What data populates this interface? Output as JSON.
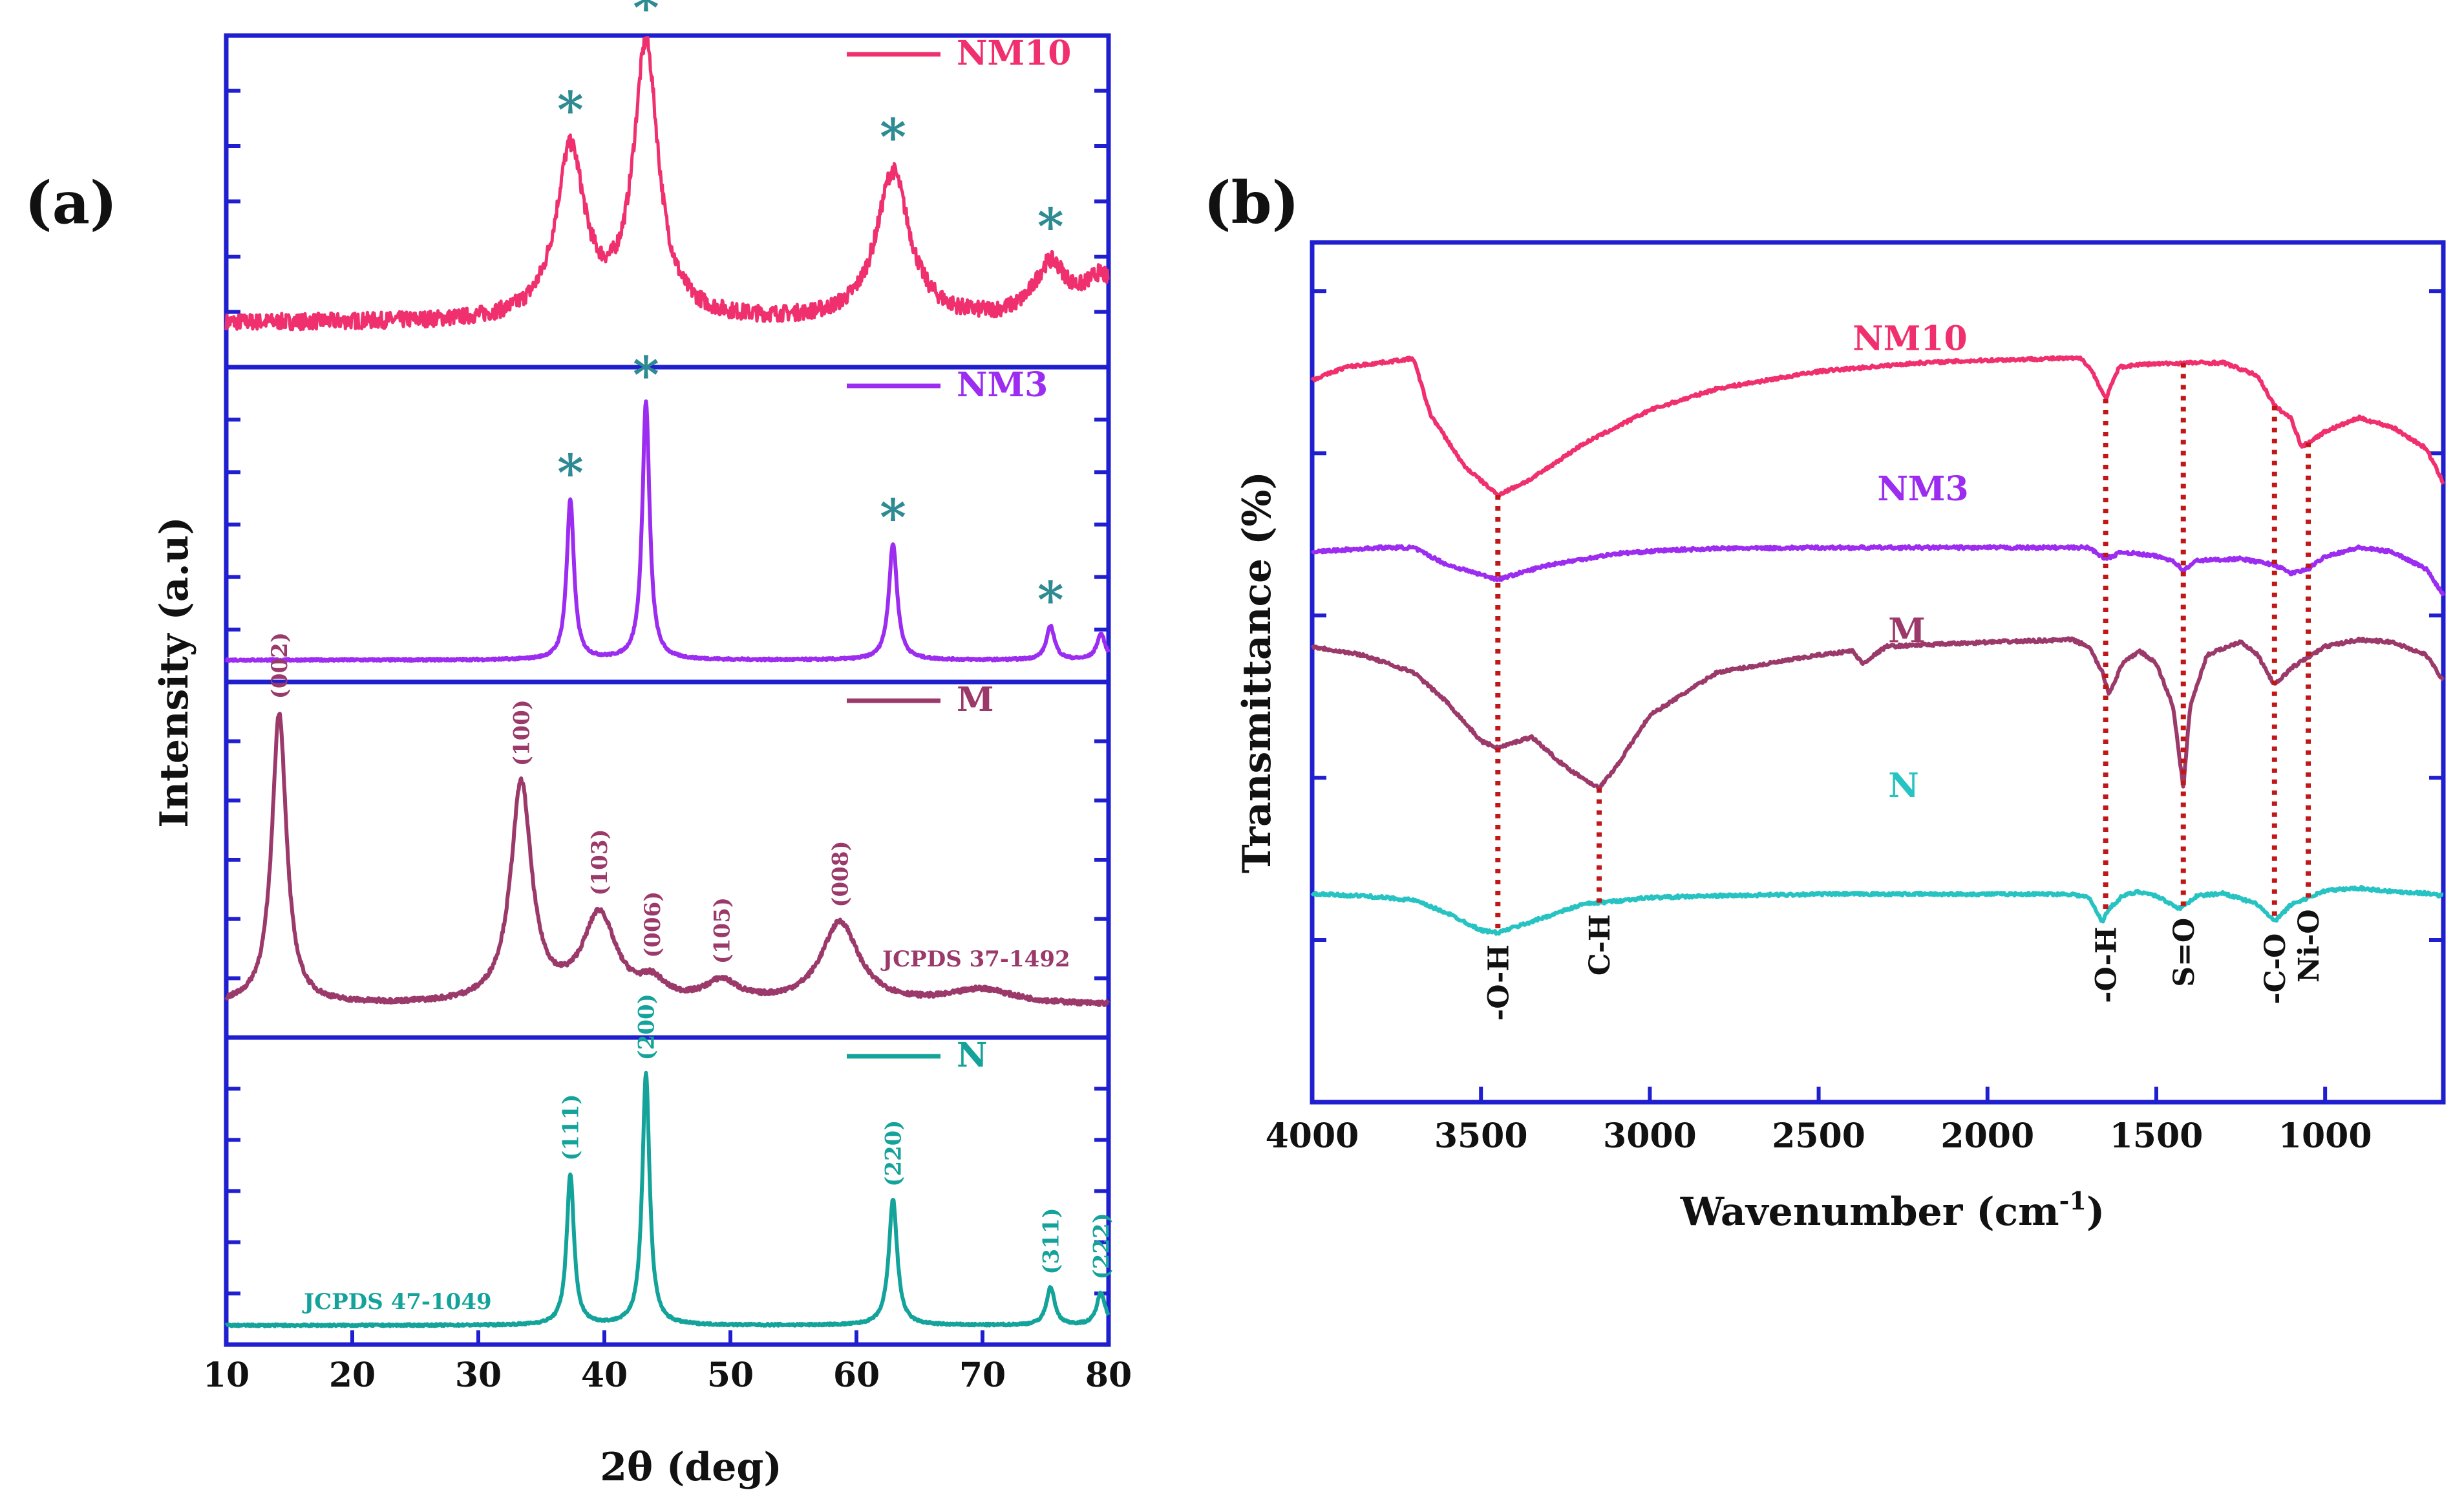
{
  "chart_data": [
    {
      "panel": "(a)",
      "type": "line",
      "xlabel": "2θ (deg)",
      "ylabel": "Intensity (a.u)",
      "xlim": [
        10,
        80
      ],
      "xticks": [
        "10",
        "20",
        "30",
        "40",
        "50",
        "60",
        "70",
        "80"
      ],
      "series": [
        {
          "name": "NM10",
          "color": "#f0306e",
          "baseline": 0.12,
          "noise": 0.06,
          "peaks": [
            {
              "x": 37.3,
              "height": 0.62,
              "width": 1.4,
              "marker": "*"
            },
            {
              "x": 43.3,
              "height": 1.0,
              "width": 1.2,
              "marker": "*"
            },
            {
              "x": 62.9,
              "height": 0.55,
              "width": 1.6,
              "marker": "*"
            },
            {
              "x": 75.4,
              "height": 0.2,
              "width": 1.6,
              "marker": "*"
            },
            {
              "x": 79.4,
              "height": 0.15,
              "width": 1.6,
              "marker": ""
            }
          ]
        },
        {
          "name": "NM3",
          "color": "#9b2cf0",
          "baseline": 0.04,
          "noise": 0.008,
          "peaks": [
            {
              "x": 37.3,
              "height": 0.62,
              "width": 0.35,
              "marker": "*"
            },
            {
              "x": 43.3,
              "height": 1.0,
              "width": 0.35,
              "marker": "*"
            },
            {
              "x": 62.9,
              "height": 0.45,
              "width": 0.4,
              "marker": "*"
            },
            {
              "x": 75.4,
              "height": 0.13,
              "width": 0.4,
              "marker": "*"
            },
            {
              "x": 79.4,
              "height": 0.1,
              "width": 0.4,
              "marker": ""
            }
          ]
        },
        {
          "name": "M",
          "color": "#9b3a6a",
          "baseline": 0.07,
          "noise": 0.015,
          "annotation": "JCPDS 37-1492",
          "peaks": [
            {
              "x": 14.2,
              "height": 1.0,
              "width": 0.7,
              "label": "(002)"
            },
            {
              "x": 33.4,
              "height": 0.75,
              "width": 1.0,
              "label": "(100)"
            },
            {
              "x": 39.6,
              "height": 0.3,
              "width": 1.6,
              "label": "(103)"
            },
            {
              "x": 43.8,
              "height": 0.06,
              "width": 1.2,
              "label": "(006)"
            },
            {
              "x": 49.3,
              "height": 0.07,
              "width": 1.6,
              "label": "(105)"
            },
            {
              "x": 58.7,
              "height": 0.28,
              "width": 1.8,
              "label": "(008)"
            },
            {
              "x": 70.0,
              "height": 0.05,
              "width": 3.0,
              "label": ""
            }
          ]
        },
        {
          "name": "N",
          "color": "#14a39a",
          "baseline": 0.03,
          "noise": 0.008,
          "annotation": "JCPDS 47-1049",
          "peaks": [
            {
              "x": 37.3,
              "height": 0.6,
              "width": 0.35,
              "label": "(111)"
            },
            {
              "x": 43.3,
              "height": 1.0,
              "width": 0.35,
              "label": "(200)"
            },
            {
              "x": 62.9,
              "height": 0.5,
              "width": 0.4,
              "label": "(220)"
            },
            {
              "x": 75.4,
              "height": 0.15,
              "width": 0.4,
              "label": "(311)"
            },
            {
              "x": 79.4,
              "height": 0.13,
              "width": 0.4,
              "label": "(222)"
            }
          ]
        }
      ]
    },
    {
      "panel": "(b)",
      "type": "line",
      "xlabel": "Wavenumber (cm",
      "xlabel_sup": "-1",
      "xlabel_end": ")",
      "ylabel": "Transmittance (%)",
      "xlim": [
        4000,
        650
      ],
      "xticks": [
        "4000",
        "3500",
        "3000",
        "2500",
        "2000",
        "1500",
        "1000"
      ],
      "ylim": [
        0,
        100
      ],
      "series": [
        {
          "name": "NM10",
          "color": "#f0306e",
          "points": [
            [
              4000,
              84
            ],
            [
              3900,
              85.5
            ],
            [
              3800,
              86
            ],
            [
              3700,
              86.5
            ],
            [
              3650,
              80
            ],
            [
              3550,
              74
            ],
            [
              3450,
              70.6
            ],
            [
              3350,
              72.5
            ],
            [
              3200,
              76.5
            ],
            [
              3000,
              80.5
            ],
            [
              2800,
              83
            ],
            [
              2500,
              85
            ],
            [
              2200,
              86
            ],
            [
              2000,
              86.3
            ],
            [
              1800,
              86.5
            ],
            [
              1720,
              86.5
            ],
            [
              1690,
              85
            ],
            [
              1650,
              81.8
            ],
            [
              1610,
              85.5
            ],
            [
              1550,
              85.8
            ],
            [
              1400,
              86
            ],
            [
              1300,
              86
            ],
            [
              1200,
              84.5
            ],
            [
              1150,
              81
            ],
            [
              1100,
              79.5
            ],
            [
              1070,
              76.2
            ],
            [
              1000,
              78
            ],
            [
              900,
              79.6
            ],
            [
              800,
              78.5
            ],
            [
              700,
              76
            ],
            [
              650,
              72
            ]
          ]
        },
        {
          "name": "NM3",
          "color": "#9b2cf0",
          "points": [
            [
              4000,
              64
            ],
            [
              3800,
              64.5
            ],
            [
              3700,
              64.5
            ],
            [
              3600,
              62.5
            ],
            [
              3450,
              60.8
            ],
            [
              3300,
              62.5
            ],
            [
              3100,
              63.8
            ],
            [
              2950,
              64.2
            ],
            [
              2800,
              64.4
            ],
            [
              2500,
              64.5
            ],
            [
              2000,
              64.5
            ],
            [
              1700,
              64.5
            ],
            [
              1650,
              63.2
            ],
            [
              1600,
              64
            ],
            [
              1500,
              63.5
            ],
            [
              1450,
              63
            ],
            [
              1420,
              61.8
            ],
            [
              1380,
              63
            ],
            [
              1250,
              63.2
            ],
            [
              1150,
              62.5
            ],
            [
              1100,
              61.5
            ],
            [
              1050,
              62
            ],
            [
              1000,
              63.5
            ],
            [
              900,
              64.5
            ],
            [
              800,
              64
            ],
            [
              700,
              62
            ],
            [
              650,
              59
            ]
          ]
        },
        {
          "name": "M",
          "color": "#9b3a6a",
          "points": [
            [
              4000,
              53
            ],
            [
              3850,
              52
            ],
            [
              3700,
              50
            ],
            [
              3600,
              46.5
            ],
            [
              3500,
              42
            ],
            [
              3450,
              41.2
            ],
            [
              3350,
              42.5
            ],
            [
              3250,
              39
            ],
            [
              3150,
              36.5
            ],
            [
              3100,
              39
            ],
            [
              3000,
              45
            ],
            [
              2800,
              50
            ],
            [
              2500,
              52
            ],
            [
              2400,
              52.5
            ],
            [
              2370,
              51
            ],
            [
              2300,
              53
            ],
            [
              2000,
              53.5
            ],
            [
              1750,
              53.8
            ],
            [
              1700,
              53
            ],
            [
              1660,
              50
            ],
            [
              1640,
              47.5
            ],
            [
              1600,
              51
            ],
            [
              1550,
              52.5
            ],
            [
              1500,
              51
            ],
            [
              1450,
              46
            ],
            [
              1420,
              36.5
            ],
            [
              1400,
              46
            ],
            [
              1350,
              52
            ],
            [
              1250,
              53.6
            ],
            [
              1200,
              52
            ],
            [
              1150,
              48.5
            ],
            [
              1100,
              50.5
            ],
            [
              1000,
              53
            ],
            [
              900,
              53.8
            ],
            [
              800,
              53.5
            ],
            [
              700,
              52
            ],
            [
              650,
              49
            ]
          ]
        },
        {
          "name": "N",
          "color": "#27c3c3",
          "points": [
            [
              4000,
              24.2
            ],
            [
              3850,
              24
            ],
            [
              3700,
              23.5
            ],
            [
              3600,
              22
            ],
            [
              3500,
              20
            ],
            [
              3450,
              19.7
            ],
            [
              3350,
              21
            ],
            [
              3200,
              23
            ],
            [
              3000,
              23.8
            ],
            [
              2800,
              24
            ],
            [
              2500,
              24.2
            ],
            [
              2000,
              24.2
            ],
            [
              1750,
              24.2
            ],
            [
              1700,
              23.8
            ],
            [
              1660,
              21
            ],
            [
              1640,
              22.5
            ],
            [
              1600,
              24
            ],
            [
              1550,
              24.5
            ],
            [
              1500,
              24
            ],
            [
              1430,
              22.5
            ],
            [
              1380,
              24
            ],
            [
              1300,
              24.3
            ],
            [
              1200,
              23
            ],
            [
              1150,
              21
            ],
            [
              1100,
              23
            ],
            [
              1000,
              24.6
            ],
            [
              900,
              24.9
            ],
            [
              800,
              24.5
            ],
            [
              700,
              24.3
            ],
            [
              650,
              24
            ]
          ]
        }
      ],
      "assignments": [
        {
          "label": "-O-H",
          "x": 3450
        },
        {
          "label": "C-H",
          "x": 3150
        },
        {
          "label": "-O-H",
          "x": 1650
        },
        {
          "label": "S=O",
          "x": 1420
        },
        {
          "label": "-C-O",
          "x": 1150
        },
        {
          "label": "Ni-O",
          "x": 1050
        }
      ]
    }
  ]
}
